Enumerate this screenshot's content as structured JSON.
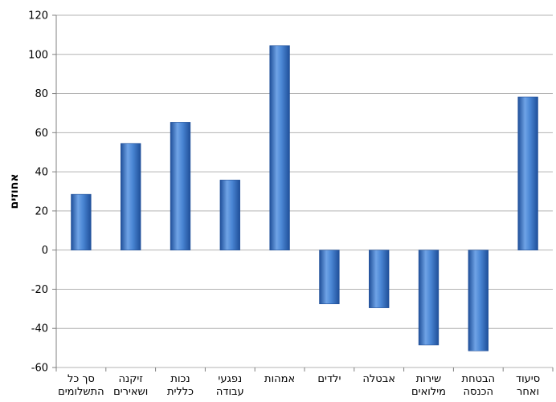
{
  "chart_data": {
    "type": "bar",
    "title": "",
    "xlabel": "",
    "ylabel": "אחוזים",
    "ylim": [
      -60,
      120
    ],
    "yticks": [
      -60,
      -40,
      -20,
      0,
      20,
      40,
      60,
      80,
      100,
      120
    ],
    "grid": true,
    "legend": "none",
    "categories": [
      [
        "סך כל",
        "התשלומים"
      ],
      [
        "זיקנה",
        "ושאירים"
      ],
      [
        "נכות",
        "כללית"
      ],
      [
        "נפגעי",
        "עבודה"
      ],
      [
        "אמהות"
      ],
      [
        "ילדים"
      ],
      [
        "אבטלה"
      ],
      [
        "שירות",
        "מילואים"
      ],
      [
        "הבטחת",
        "הכנסה"
      ],
      [
        "סיעוד",
        "ואחר"
      ]
    ],
    "values": [
      28.5,
      54.5,
      65.3,
      35.8,
      104.5,
      -27.5,
      -29.5,
      -48.5,
      -51.5,
      78.2
    ],
    "colors": {
      "bar_light": "#6fa3e6",
      "bar_mid": "#3f7fd0",
      "bar_dark": "#1f4f99",
      "grid": "#b3b3b3",
      "axis": "#808080",
      "text": "#000000"
    }
  }
}
